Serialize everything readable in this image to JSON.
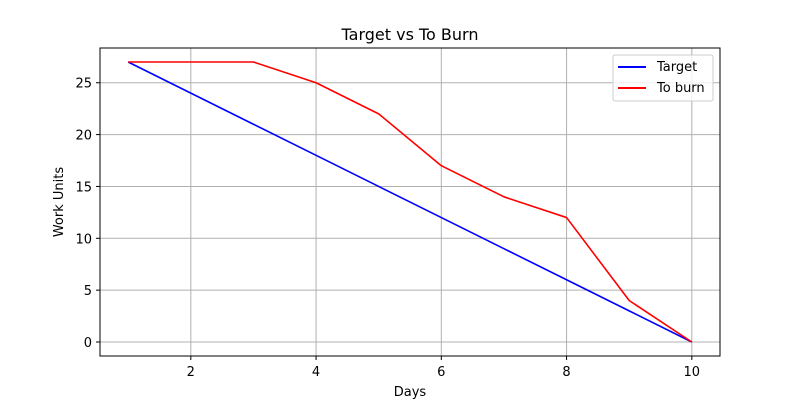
{
  "chart_data": {
    "type": "line",
    "title": "Target vs To Burn",
    "xlabel": "Days",
    "ylabel": "Work Units",
    "x": [
      1,
      2,
      3,
      4,
      5,
      6,
      7,
      8,
      9,
      10
    ],
    "series": [
      {
        "name": "Target",
        "color": "#0000ff",
        "values": [
          27,
          24,
          21,
          18,
          15,
          12,
          9,
          6,
          3,
          0
        ]
      },
      {
        "name": "To burn",
        "color": "#ff0000",
        "values": [
          27,
          27,
          27,
          25,
          22,
          17,
          14,
          12,
          4,
          0
        ]
      }
    ],
    "xlim": [
      0.55,
      10.45
    ],
    "ylim": [
      -1.35,
      28.35
    ],
    "xticks": [
      2,
      4,
      6,
      8,
      10
    ],
    "yticks": [
      0,
      5,
      10,
      15,
      20,
      25
    ],
    "grid": true,
    "legend": "top-right"
  }
}
